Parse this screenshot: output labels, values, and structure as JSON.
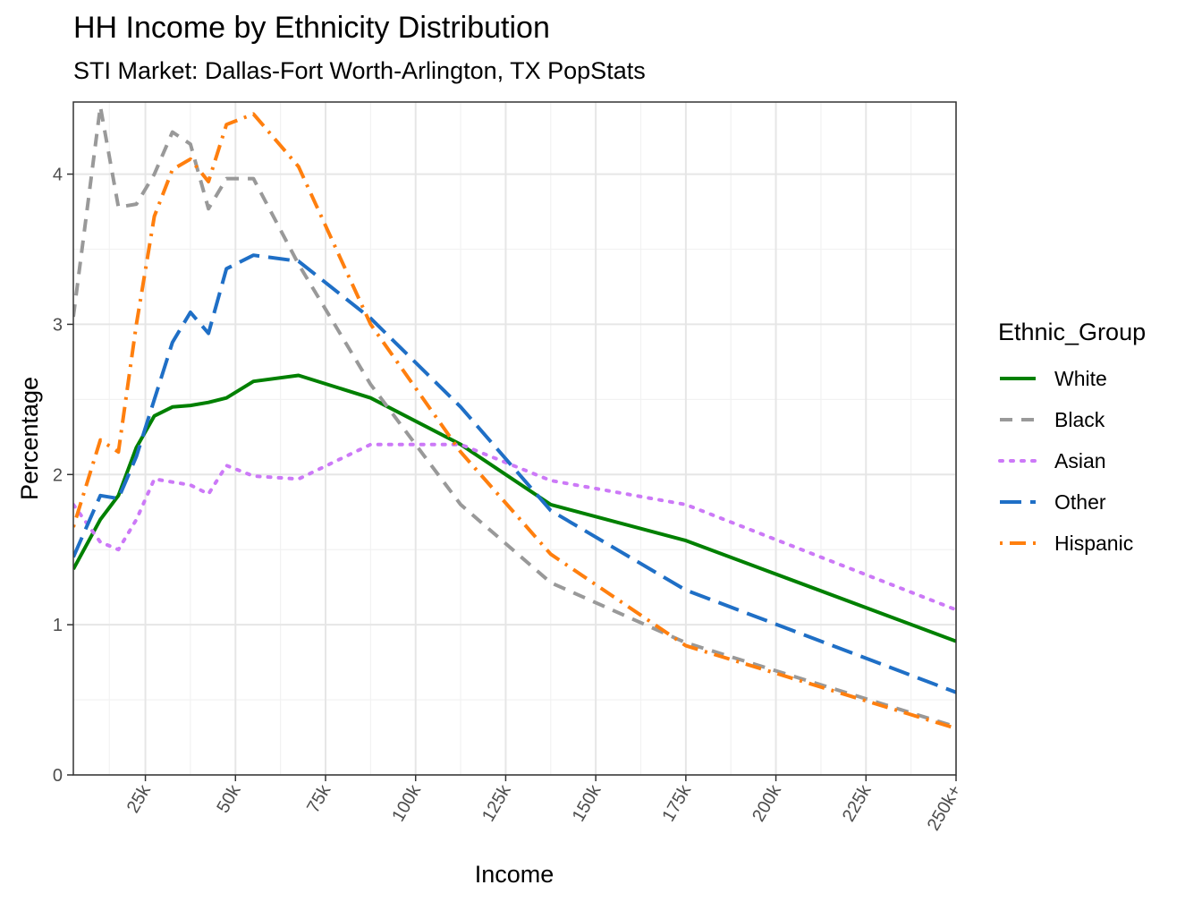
{
  "chart_data": {
    "type": "line",
    "title": "HH Income by Ethnicity Distribution",
    "subtitle": "STI Market: Dallas-Fort Worth-Arlington, TX PopStats",
    "xlabel": "Income",
    "ylabel": "Percentage",
    "xlim": [
      5,
      250
    ],
    "ylim": [
      0,
      4.48
    ],
    "x_ticks": [
      25,
      50,
      75,
      100,
      125,
      150,
      175,
      200,
      225,
      250
    ],
    "x_tick_labels": [
      "25k",
      "50k",
      "75k",
      "100k",
      "125k",
      "150k",
      "175k",
      "200k",
      "225k",
      "250k+"
    ],
    "y_ticks": [
      0,
      1,
      2,
      3,
      4
    ],
    "y_tick_labels": [
      "0",
      "1",
      "2",
      "3",
      "4"
    ],
    "grid": true,
    "legend_title": "Ethnic_Group",
    "legend_position": "right",
    "x": [
      5,
      12.5,
      17.5,
      22.5,
      27.5,
      32.5,
      37.5,
      42.5,
      47.5,
      55,
      67.5,
      87.5,
      112.5,
      137.5,
      175,
      250
    ],
    "series": [
      {
        "name": "White",
        "color": "#008000",
        "dash": "solid",
        "values": [
          1.37,
          1.7,
          1.86,
          2.18,
          2.39,
          2.45,
          2.46,
          2.48,
          2.51,
          2.62,
          2.66,
          2.51,
          2.2,
          1.8,
          1.56,
          0.89
        ]
      },
      {
        "name": "Black",
        "color": "#999999",
        "dash": "dashed",
        "values": [
          3.05,
          4.45,
          3.78,
          3.8,
          4.0,
          4.28,
          4.2,
          3.77,
          3.97,
          3.97,
          3.4,
          2.6,
          1.8,
          1.28,
          0.88,
          0.32
        ]
      },
      {
        "name": "Asian",
        "color": "#cc79f7",
        "dash": "dotted",
        "values": [
          1.8,
          1.55,
          1.5,
          1.7,
          1.97,
          1.95,
          1.93,
          1.87,
          2.06,
          1.99,
          1.97,
          2.2,
          2.2,
          1.96,
          1.8,
          1.1
        ]
      },
      {
        "name": "Other",
        "color": "#1f6fc6",
        "dash": "longdash",
        "values": [
          1.45,
          1.86,
          1.84,
          2.12,
          2.5,
          2.88,
          3.08,
          2.94,
          3.37,
          3.46,
          3.42,
          3.04,
          2.45,
          1.76,
          1.23,
          0.55
        ]
      },
      {
        "name": "Hispanic",
        "color": "#ff7f0e",
        "dash": "dotdash",
        "values": [
          1.65,
          2.23,
          2.15,
          3.0,
          3.72,
          4.03,
          4.1,
          3.95,
          4.33,
          4.4,
          4.05,
          3.0,
          2.15,
          1.47,
          0.86,
          0.31
        ]
      }
    ]
  }
}
